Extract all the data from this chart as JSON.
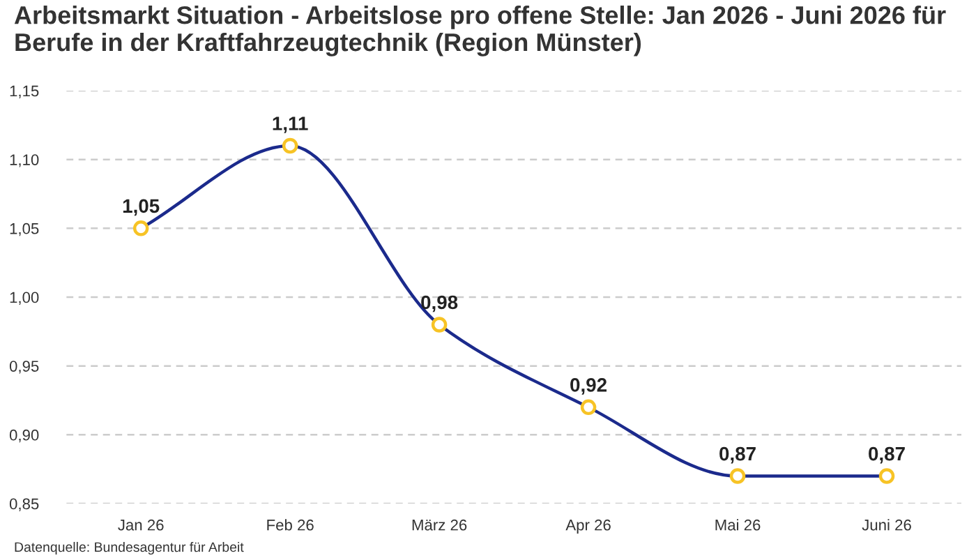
{
  "chart_data": {
    "type": "line",
    "title": "Arbeitsmarkt Situation - Arbeitslose pro offene Stelle: Jan 2026 - Juni 2026 für Berufe in der Kraftfahrzeugtechnik (Region Münster)",
    "categories": [
      "Jan 26",
      "Feb 26",
      "März 26",
      "Apr 26",
      "Mai 26",
      "Juni 26"
    ],
    "series": [
      {
        "color": "#1b2a8c",
        "colors": [
          "#f7c325",
          "#f7c325",
          "#f7c325",
          "#f7c325",
          "#f7c325",
          "#f7c325"
        ],
        "values": [
          1.05,
          1.11,
          0.98,
          0.92,
          0.87,
          0.87
        ],
        "value_labels": [
          "1,05",
          "1,11",
          "0,98",
          "0,92",
          "0,87",
          "0,87"
        ]
      }
    ],
    "ylim": [
      0.85,
      1.15
    ],
    "yticks": [
      {
        "value": 0.85,
        "label": "0,85"
      },
      {
        "value": 0.9,
        "label": "0,90"
      },
      {
        "value": 0.95,
        "label": "0,95"
      },
      {
        "value": 1.0,
        "label": "1,00"
      },
      {
        "value": 1.05,
        "label": "1,05"
      },
      {
        "value": 1.1,
        "label": "1,10"
      },
      {
        "value": 1.15,
        "label": "1,15"
      }
    ],
    "grid": "y",
    "marker": "circle",
    "line_style": "solid",
    "annotations": [
      "Datenquelle: Bundesagentur für Arbeit"
    ]
  }
}
